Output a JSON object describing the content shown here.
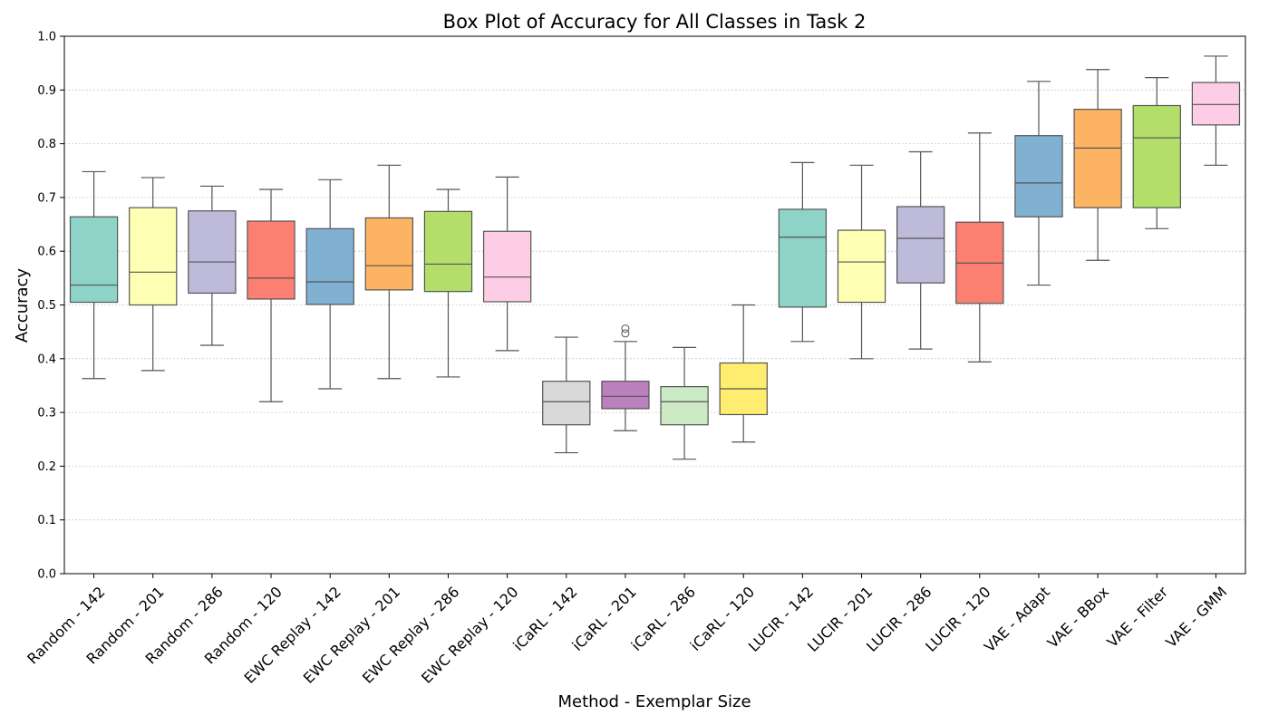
{
  "chart_data": {
    "type": "box",
    "title": "Box Plot of Accuracy for All Classes in Task 2",
    "xlabel": "Method - Exemplar Size",
    "ylabel": "Accuracy",
    "ylim": [
      0,
      1.0
    ],
    "yticks": [
      "0.0",
      "0.1",
      "0.2",
      "0.3",
      "0.4",
      "0.5",
      "0.6",
      "0.7",
      "0.8",
      "0.9",
      "1.0"
    ],
    "grid": "horizontal dotted",
    "categories": [
      "Random - 142",
      "Random - 201",
      "Random - 286",
      "Random - 120",
      "EWC Replay - 142",
      "EWC Replay - 201",
      "EWC Replay - 286",
      "EWC Replay - 120",
      "iCaRL - 142",
      "iCaRL - 201",
      "iCaRL - 286",
      "iCaRL - 120",
      "LUCIR - 142",
      "LUCIR - 201",
      "LUCIR - 286",
      "LUCIR - 120",
      "VAE - Adapt",
      "VAE - BBox",
      "VAE - Filter",
      "VAE - GMM"
    ],
    "boxes": [
      {
        "whisker_low": 0.363,
        "q1": 0.505,
        "median": 0.537,
        "q3": 0.664,
        "whisker_high": 0.748,
        "outliers": [],
        "color": "#8dd3c7"
      },
      {
        "whisker_low": 0.378,
        "q1": 0.5,
        "median": 0.561,
        "q3": 0.681,
        "whisker_high": 0.737,
        "outliers": [],
        "color": "#ffffb3"
      },
      {
        "whisker_low": 0.425,
        "q1": 0.522,
        "median": 0.58,
        "q3": 0.675,
        "whisker_high": 0.721,
        "outliers": [],
        "color": "#bebada"
      },
      {
        "whisker_low": 0.32,
        "q1": 0.511,
        "median": 0.55,
        "q3": 0.656,
        "whisker_high": 0.715,
        "outliers": [],
        "color": "#fb8072"
      },
      {
        "whisker_low": 0.344,
        "q1": 0.501,
        "median": 0.543,
        "q3": 0.642,
        "whisker_high": 0.733,
        "outliers": [],
        "color": "#80b1d3"
      },
      {
        "whisker_low": 0.363,
        "q1": 0.528,
        "median": 0.573,
        "q3": 0.662,
        "whisker_high": 0.76,
        "outliers": [],
        "color": "#fdb462"
      },
      {
        "whisker_low": 0.366,
        "q1": 0.525,
        "median": 0.576,
        "q3": 0.674,
        "whisker_high": 0.715,
        "outliers": [],
        "color": "#b3de69"
      },
      {
        "whisker_low": 0.415,
        "q1": 0.506,
        "median": 0.552,
        "q3": 0.637,
        "whisker_high": 0.738,
        "outliers": [],
        "color": "#fccde5"
      },
      {
        "whisker_low": 0.225,
        "q1": 0.277,
        "median": 0.32,
        "q3": 0.358,
        "whisker_high": 0.44,
        "outliers": [],
        "color": "#d9d9d9"
      },
      {
        "whisker_low": 0.266,
        "q1": 0.307,
        "median": 0.33,
        "q3": 0.358,
        "whisker_high": 0.432,
        "outliers": [
          0.447,
          0.456
        ],
        "color": "#bc80bd"
      },
      {
        "whisker_low": 0.213,
        "q1": 0.277,
        "median": 0.32,
        "q3": 0.348,
        "whisker_high": 0.421,
        "outliers": [],
        "color": "#ccebc5"
      },
      {
        "whisker_low": 0.245,
        "q1": 0.296,
        "median": 0.344,
        "q3": 0.392,
        "whisker_high": 0.5,
        "outliers": [],
        "color": "#ffed6f"
      },
      {
        "whisker_low": 0.432,
        "q1": 0.496,
        "median": 0.626,
        "q3": 0.678,
        "whisker_high": 0.765,
        "outliers": [],
        "color": "#8dd3c7"
      },
      {
        "whisker_low": 0.4,
        "q1": 0.505,
        "median": 0.58,
        "q3": 0.639,
        "whisker_high": 0.76,
        "outliers": [],
        "color": "#ffffb3"
      },
      {
        "whisker_low": 0.418,
        "q1": 0.541,
        "median": 0.624,
        "q3": 0.683,
        "whisker_high": 0.785,
        "outliers": [],
        "color": "#bebada"
      },
      {
        "whisker_low": 0.394,
        "q1": 0.503,
        "median": 0.578,
        "q3": 0.654,
        "whisker_high": 0.82,
        "outliers": [],
        "color": "#fb8072"
      },
      {
        "whisker_low": 0.537,
        "q1": 0.664,
        "median": 0.727,
        "q3": 0.815,
        "whisker_high": 0.916,
        "outliers": [],
        "color": "#80b1d3"
      },
      {
        "whisker_low": 0.583,
        "q1": 0.681,
        "median": 0.792,
        "q3": 0.864,
        "whisker_high": 0.938,
        "outliers": [],
        "color": "#fdb462"
      },
      {
        "whisker_low": 0.642,
        "q1": 0.681,
        "median": 0.811,
        "q3": 0.871,
        "whisker_high": 0.923,
        "outliers": [],
        "color": "#b3de69"
      },
      {
        "whisker_low": 0.76,
        "q1": 0.835,
        "median": 0.873,
        "q3": 0.914,
        "whisker_high": 0.963,
        "outliers": [],
        "color": "#fccde5"
      }
    ]
  }
}
